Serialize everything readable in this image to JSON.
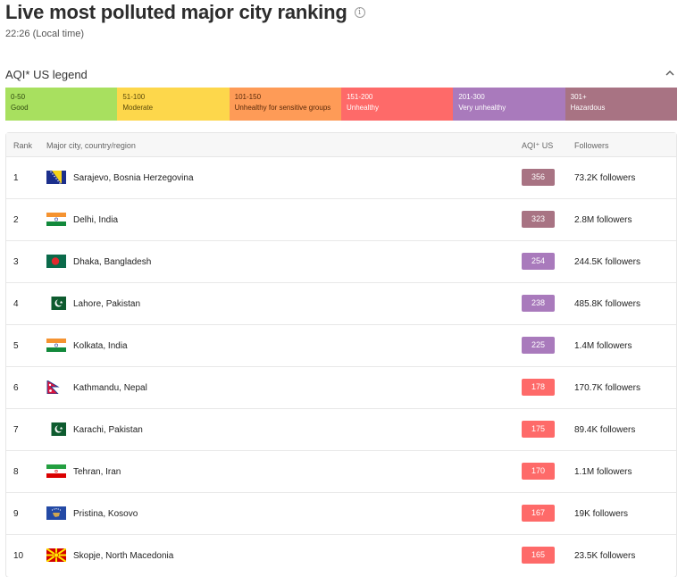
{
  "header": {
    "title": "Live most polluted major city ranking",
    "local_time": "22:26 (Local time)"
  },
  "legend": {
    "title": "AQI* US legend",
    "segments": [
      {
        "range": "0-50",
        "label": "Good",
        "color": "#a8e05f",
        "text_color": "#2f4a10"
      },
      {
        "range": "51-100",
        "label": "Moderate",
        "color": "#fdd74b",
        "text_color": "#5b4a0a"
      },
      {
        "range": "101-150",
        "label": "Unhealthy for sensitive groups",
        "color": "#fe9b57",
        "text_color": "#5a2a0a"
      },
      {
        "range": "151-200",
        "label": "Unhealthy",
        "color": "#fe6a69",
        "text_color": "#ffffff"
      },
      {
        "range": "201-300",
        "label": "Very unhealthy",
        "color": "#a97abc",
        "text_color": "#ffffff"
      },
      {
        "range": "301+",
        "label": "Hazardous",
        "color": "#a87383",
        "text_color": "#ffffff"
      }
    ]
  },
  "table": {
    "headers": {
      "rank": "Rank",
      "city": "Major city, country/region",
      "aqi": "AQI⁺ US",
      "followers": "Followers"
    },
    "rows": [
      {
        "rank": "1",
        "city": "Sarajevo, Bosnia Herzegovina",
        "flag": "bosnia-flag-icon",
        "aqi": "356",
        "aqi_color": "#a87383",
        "followers_num": "73.2K",
        "followers_word": "followers"
      },
      {
        "rank": "2",
        "city": "Delhi, India",
        "flag": "india-flag-icon",
        "aqi": "323",
        "aqi_color": "#a87383",
        "followers_num": "2.8M",
        "followers_word": "followers"
      },
      {
        "rank": "3",
        "city": "Dhaka, Bangladesh",
        "flag": "bangladesh-flag-icon",
        "aqi": "254",
        "aqi_color": "#a97abc",
        "followers_num": "244.5K",
        "followers_word": "followers"
      },
      {
        "rank": "4",
        "city": "Lahore, Pakistan",
        "flag": "pakistan-flag-icon",
        "aqi": "238",
        "aqi_color": "#a97abc",
        "followers_num": "485.8K",
        "followers_word": "followers"
      },
      {
        "rank": "5",
        "city": "Kolkata, India",
        "flag": "india-flag-icon",
        "aqi": "225",
        "aqi_color": "#a97abc",
        "followers_num": "1.4M",
        "followers_word": "followers"
      },
      {
        "rank": "6",
        "city": "Kathmandu, Nepal",
        "flag": "nepal-flag-icon",
        "aqi": "178",
        "aqi_color": "#fe6a69",
        "followers_num": "170.7K",
        "followers_word": "followers"
      },
      {
        "rank": "7",
        "city": "Karachi, Pakistan",
        "flag": "pakistan-flag-icon",
        "aqi": "175",
        "aqi_color": "#fe6a69",
        "followers_num": "89.4K",
        "followers_word": "followers"
      },
      {
        "rank": "8",
        "city": "Tehran, Iran",
        "flag": "iran-flag-icon",
        "aqi": "170",
        "aqi_color": "#fe6a69",
        "followers_num": "1.1M",
        "followers_word": "followers"
      },
      {
        "rank": "9",
        "city": "Pristina, Kosovo",
        "flag": "kosovo-flag-icon",
        "aqi": "167",
        "aqi_color": "#fe6a69",
        "followers_num": "19K",
        "followers_word": "followers"
      },
      {
        "rank": "10",
        "city": "Skopje, North Macedonia",
        "flag": "north-macedonia-flag-icon",
        "aqi": "165",
        "aqi_color": "#fe6a69",
        "followers_num": "23.5K",
        "followers_word": "followers"
      }
    ]
  }
}
